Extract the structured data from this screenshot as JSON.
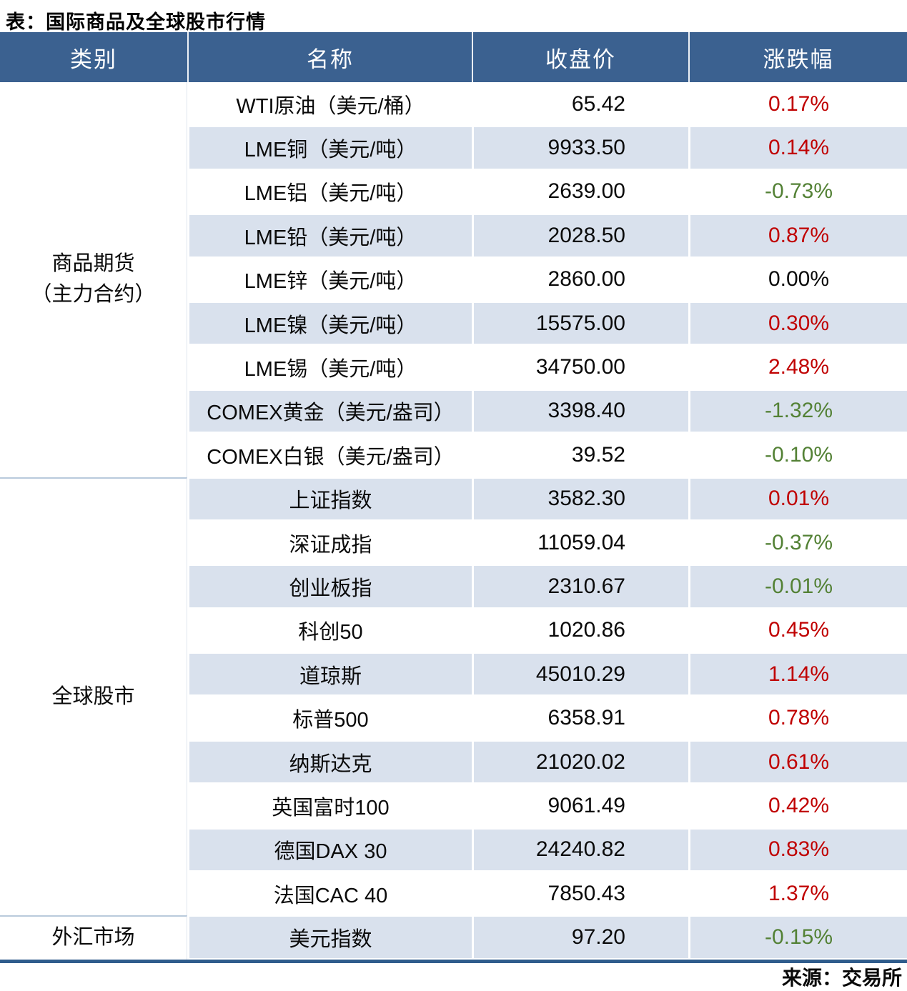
{
  "title": "表：国际商品及全球股市行情",
  "source": "来源：交易所",
  "colors": {
    "header_bg": "#3b6190",
    "alt_row_bg": "#d9e1ed",
    "up_red": "#c00000",
    "down_green": "#538135",
    "bottom_border": "#2f5c8c",
    "group_divider": "#b9cadc"
  },
  "chart_data": {
    "type": "table",
    "title": "表：国际商品及全球股市行情",
    "columns": [
      "类别",
      "名称",
      "收盘价",
      "涨跌幅"
    ],
    "groups": [
      {
        "category": "商品期货\n（主力合约）",
        "rows": [
          {
            "name": "WTI原油（美元/桶）",
            "close": "65.42",
            "chg": "0.17%",
            "dir": "up"
          },
          {
            "name": "LME铜（美元/吨）",
            "close": "9933.50",
            "chg": "0.14%",
            "dir": "up"
          },
          {
            "name": "LME铝（美元/吨）",
            "close": "2639.00",
            "chg": "-0.73%",
            "dir": "down"
          },
          {
            "name": "LME铅（美元/吨）",
            "close": "2028.50",
            "chg": "0.87%",
            "dir": "up"
          },
          {
            "name": "LME锌（美元/吨）",
            "close": "2860.00",
            "chg": "0.00%",
            "dir": "flat"
          },
          {
            "name": "LME镍（美元/吨）",
            "close": "15575.00",
            "chg": "0.30%",
            "dir": "up"
          },
          {
            "name": "LME锡（美元/吨）",
            "close": "34750.00",
            "chg": "2.48%",
            "dir": "up"
          },
          {
            "name": "COMEX黄金（美元/盎司）",
            "close": "3398.40",
            "chg": "-1.32%",
            "dir": "down"
          },
          {
            "name": "COMEX白银（美元/盎司）",
            "close": "39.52",
            "chg": "-0.10%",
            "dir": "down"
          }
        ]
      },
      {
        "category": "全球股市",
        "rows": [
          {
            "name": "上证指数",
            "close": "3582.30",
            "chg": "0.01%",
            "dir": "up"
          },
          {
            "name": "深证成指",
            "close": "11059.04",
            "chg": "-0.37%",
            "dir": "down"
          },
          {
            "name": "创业板指",
            "close": "2310.67",
            "chg": "-0.01%",
            "dir": "down"
          },
          {
            "name": "科创50",
            "close": "1020.86",
            "chg": "0.45%",
            "dir": "up"
          },
          {
            "name": "道琼斯",
            "close": "45010.29",
            "chg": "1.14%",
            "dir": "up"
          },
          {
            "name": "标普500",
            "close": "6358.91",
            "chg": "0.78%",
            "dir": "up"
          },
          {
            "name": "纳斯达克",
            "close": "21020.02",
            "chg": "0.61%",
            "dir": "up"
          },
          {
            "name": "英国富时100",
            "close": "9061.49",
            "chg": "0.42%",
            "dir": "up"
          },
          {
            "name": "德国DAX 30",
            "close": "24240.82",
            "chg": "0.83%",
            "dir": "up"
          },
          {
            "name": "法国CAC 40",
            "close": "7850.43",
            "chg": "1.37%",
            "dir": "up"
          }
        ]
      },
      {
        "category": "外汇市场",
        "rows": [
          {
            "name": "美元指数",
            "close": "97.20",
            "chg": "-0.15%",
            "dir": "down"
          }
        ]
      }
    ]
  }
}
